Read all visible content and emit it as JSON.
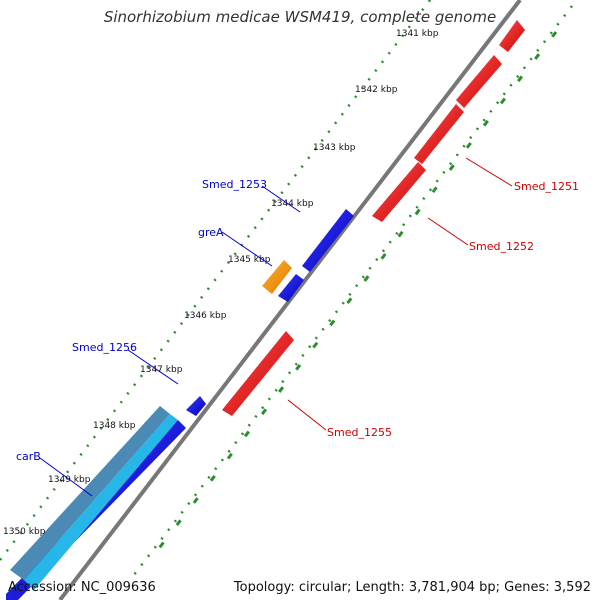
{
  "title": "Sinorhizobium medicae WSM419, complete genome",
  "accession_text": "Accession: NC_009636",
  "topology_text": "Topology: circular; Length: 3,781,904 bp; Genes: 3,592",
  "colors": {
    "forward_gene": "#e00000",
    "reverse_gene": "#0000dd",
    "highlight_gene": "#f39200",
    "cyan_gene": "#27b6e8",
    "steel_gene": "#4a8ab5",
    "backbone": "#777777",
    "ticks": "#2e8b2e",
    "reverse_label": "#0000cc",
    "forward_label": "#cc0000"
  },
  "kbp_labels": [
    "1341 kbp",
    "1342 kbp",
    "1343 kbp",
    "1344 kbp",
    "1345 kbp",
    "1346 kbp",
    "1347 kbp",
    "1348 kbp",
    "1349 kbp",
    "1350 kbp"
  ],
  "gene_labels": {
    "Smed_1253": "Smed_1253",
    "greA": "greA",
    "Smed_1256": "Smed_1256",
    "carB": "carB",
    "Smed_1251": "Smed_1251",
    "Smed_1252": "Smed_1252",
    "Smed_1255": "Smed_1255"
  }
}
